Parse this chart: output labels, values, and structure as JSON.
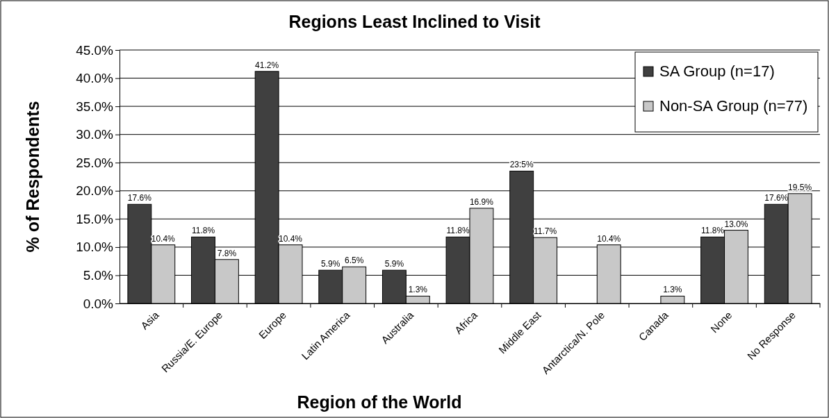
{
  "chart_data": {
    "type": "bar",
    "title": "Regions Least Inclined to Visit",
    "xlabel": "Region of the World",
    "ylabel": "% of Respondents",
    "categories": [
      "Asia",
      "Russia/E. Europe",
      "Europe",
      "Latin America",
      "Australia",
      "Africa",
      "Middle East",
      "Antarctica/N. Pole",
      "Canada",
      "None",
      "No Response"
    ],
    "series": [
      {
        "name": "SA Group (n=17)",
        "color": "#404040",
        "values": [
          17.6,
          11.8,
          41.2,
          5.9,
          5.9,
          11.8,
          23.5,
          null,
          null,
          11.8,
          17.6
        ],
        "value_labels": [
          "17.6%",
          "11.8%",
          "41.2%",
          "5.9%",
          "5.9%",
          "11.8%",
          "23.5%",
          null,
          null,
          "11.8%",
          "17.6%"
        ]
      },
      {
        "name": "Non-SA Group (n=77)",
        "color": "#c8c8c8",
        "values": [
          10.4,
          7.8,
          10.4,
          6.5,
          1.3,
          16.9,
          11.7,
          10.4,
          1.3,
          13.0,
          19.5
        ],
        "value_labels": [
          "10.4%",
          "7.8%",
          "10.4%",
          "6.5%",
          "1.3%",
          "16.9%",
          "11.7%",
          "10.4%",
          "1.3%",
          "13.0%",
          "19.5%"
        ]
      }
    ],
    "ylim": [
      0,
      45
    ],
    "yticks": [
      {
        "value": 0,
        "label": "0.0%"
      },
      {
        "value": 5,
        "label": "5.0%"
      },
      {
        "value": 10,
        "label": "10.0%"
      },
      {
        "value": 15,
        "label": "15.0%"
      },
      {
        "value": 20,
        "label": "20.0%"
      },
      {
        "value": 25,
        "label": "25.0%"
      },
      {
        "value": 30,
        "label": "30.0%"
      },
      {
        "value": 35,
        "label": "35.0%"
      },
      {
        "value": 40,
        "label": "40.0%"
      },
      {
        "value": 45,
        "label": "45.0%"
      }
    ],
    "grid": "y",
    "legend": "top right"
  }
}
